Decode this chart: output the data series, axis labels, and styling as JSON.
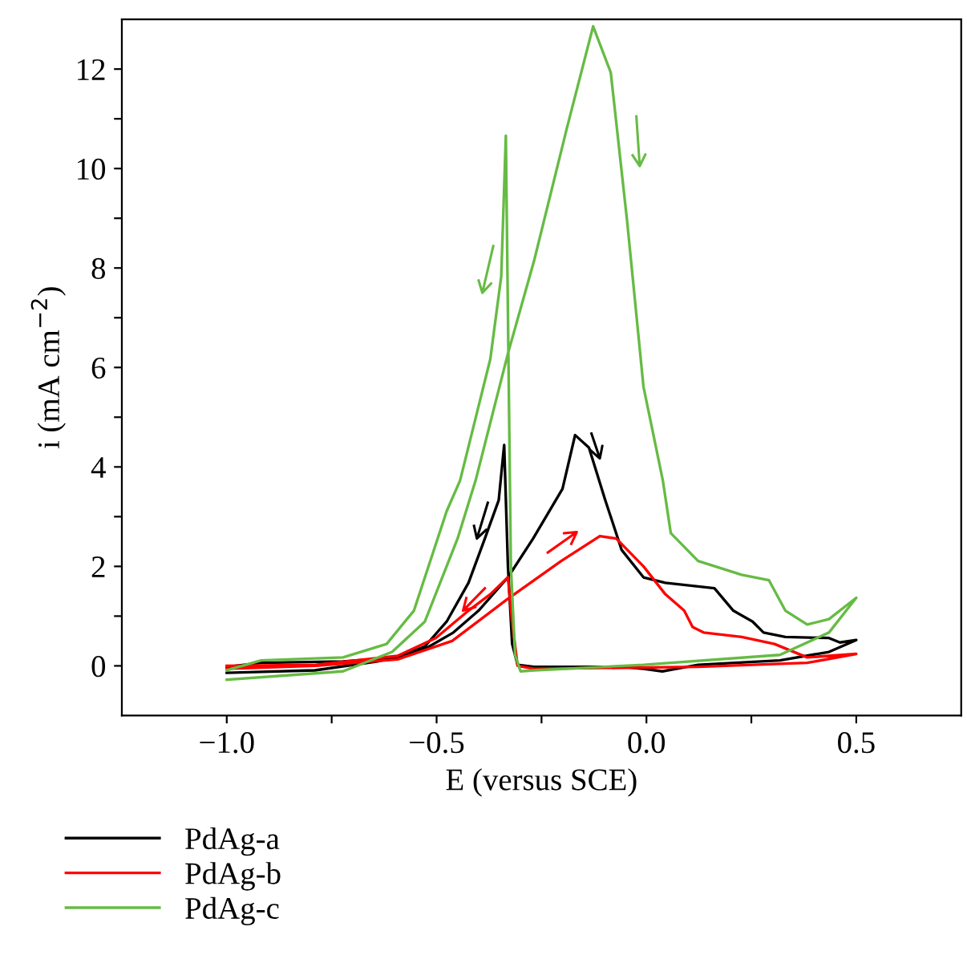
{
  "chart_data": {
    "type": "line",
    "xlabel": "E (versus SCE)",
    "ylabel": "i (mA cm$^{−2}$)",
    "xlim": [
      -1.25,
      0.75
    ],
    "ylim": [
      -1,
      13
    ],
    "xticks": [
      {
        "value": -1.0,
        "label": "−1.0"
      },
      {
        "value": -0.75,
        "label": null
      },
      {
        "value": -0.5,
        "label": "−0.5"
      },
      {
        "value": -0.25,
        "label": null
      },
      {
        "value": 0.0,
        "label": "0.0"
      },
      {
        "value": 0.25,
        "label": null
      },
      {
        "value": 0.5,
        "label": "0.5"
      }
    ],
    "yticks": [
      0,
      {
        "value": 1,
        "label": null
      },
      2,
      {
        "value": 3,
        "label": null
      },
      4,
      {
        "value": 5,
        "label": null
      },
      6,
      {
        "value": 7,
        "label": null
      },
      8,
      {
        "value": 9,
        "label": null
      },
      10,
      {
        "value": 11,
        "label": null
      },
      12
    ],
    "legend": "bottom left",
    "grid": false,
    "series": [
      {
        "name": "PdAg-a",
        "color": "#000000",
        "x": [
          -1.0,
          -0.79,
          -0.64,
          -0.53,
          -0.46,
          -0.4,
          -0.33,
          -0.27,
          -0.2,
          -0.17,
          -0.137,
          -0.098,
          -0.059,
          -0.007,
          0.045,
          0.162,
          0.207,
          0.253,
          0.279,
          0.331,
          0.435,
          0.461,
          0.5,
          0.435,
          0.318,
          0.123,
          0.071,
          0.038,
          -0.007,
          -0.06,
          -0.268,
          -0.307,
          -0.32,
          -0.33,
          -0.339,
          -0.352,
          -0.385,
          -0.424,
          -0.476,
          -0.528,
          -0.593,
          -0.723,
          -0.918,
          -1.0
        ],
        "values": [
          -0.14,
          -0.09,
          0.09,
          0.33,
          0.67,
          1.11,
          1.78,
          2.56,
          3.56,
          4.64,
          4.39,
          3.33,
          2.33,
          1.78,
          1.67,
          1.56,
          1.11,
          0.89,
          0.67,
          0.58,
          0.56,
          0.47,
          0.52,
          0.28,
          0.11,
          0.02,
          -0.06,
          -0.11,
          -0.06,
          -0.02,
          -0.02,
          0.02,
          0.44,
          2.0,
          4.44,
          3.33,
          2.56,
          1.67,
          0.89,
          0.39,
          0.17,
          0.09,
          0.06,
          -0.02
        ]
      },
      {
        "name": "PdAg-b",
        "color": "#ff0000",
        "x": [
          -1.0,
          -0.788,
          -0.593,
          -0.463,
          -0.333,
          -0.203,
          -0.111,
          -0.072,
          -0.007,
          0.045,
          0.09,
          0.11,
          0.136,
          0.227,
          0.305,
          0.383,
          0.5,
          0.383,
          0.123,
          -0.268,
          -0.307,
          -0.32,
          -0.33,
          -0.372,
          -0.424,
          -0.502,
          -0.593,
          -0.788,
          -1.0
        ],
        "values": [
          -0.06,
          0.0,
          0.13,
          0.5,
          1.33,
          2.11,
          2.61,
          2.56,
          2.0,
          1.44,
          1.11,
          0.78,
          0.67,
          0.58,
          0.44,
          0.17,
          0.24,
          0.06,
          -0.02,
          -0.06,
          0.0,
          0.89,
          1.78,
          1.44,
          1.11,
          0.56,
          0.2,
          0.02,
          0.0
        ]
      },
      {
        "name": "PdAg-c",
        "color": "#66bb44",
        "x": [
          -1.0,
          -0.723,
          -0.606,
          -0.528,
          -0.45,
          -0.407,
          -0.33,
          -0.267,
          -0.189,
          -0.127,
          -0.085,
          -0.046,
          -0.007,
          0.039,
          0.058,
          0.123,
          0.227,
          0.292,
          0.331,
          0.383,
          0.435,
          0.5,
          0.435,
          0.318,
          -0.007,
          -0.268,
          -0.3,
          -0.313,
          -0.323,
          -0.335,
          -0.346,
          -0.372,
          -0.444,
          -0.476,
          -0.554,
          -0.619,
          -0.723,
          -0.918,
          -1.0
        ],
        "values": [
          -0.28,
          -0.11,
          0.28,
          0.89,
          2.56,
          3.73,
          6.28,
          8.17,
          10.83,
          12.86,
          11.93,
          8.94,
          5.61,
          3.73,
          2.67,
          2.11,
          1.83,
          1.72,
          1.11,
          0.83,
          0.94,
          1.37,
          0.67,
          0.22,
          0.02,
          -0.09,
          -0.11,
          0.22,
          2.0,
          10.66,
          7.83,
          6.17,
          3.73,
          3.11,
          1.11,
          0.44,
          0.17,
          0.11,
          -0.09
        ]
      }
    ]
  }
}
